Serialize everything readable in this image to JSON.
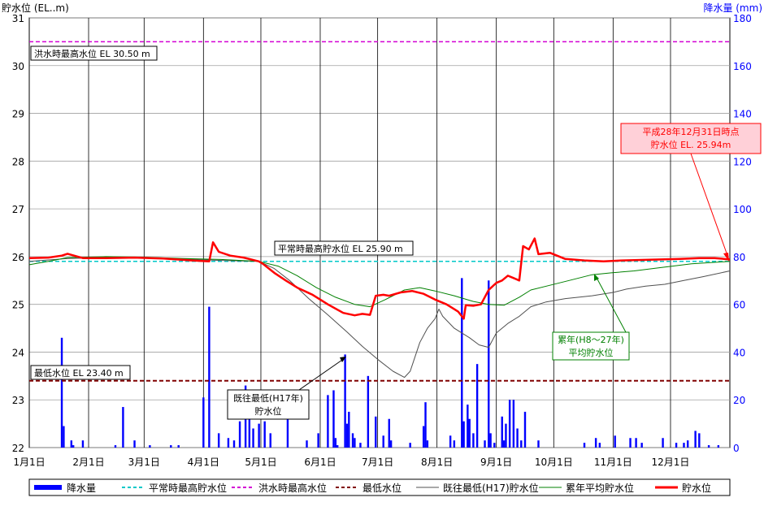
{
  "chart_data": {
    "type": "line",
    "left_axis_label": "貯水位 (EL..m)",
    "right_axis_label": "降水量 (mm)",
    "left_ticks": [
      22,
      23,
      24,
      25,
      26,
      27,
      28,
      29,
      30,
      31
    ],
    "right_ticks": [
      0,
      20,
      40,
      60,
      80,
      100,
      120,
      140,
      160,
      180
    ],
    "left_ylim": [
      22,
      31
    ],
    "right_ylim": [
      0,
      180
    ],
    "x_range": [
      0,
      366
    ],
    "months": [
      {
        "day": 0,
        "label": "1月1日"
      },
      {
        "day": 31,
        "label": "2月1日"
      },
      {
        "day": 60,
        "label": "3月1日"
      },
      {
        "day": 91,
        "label": "4月1日"
      },
      {
        "day": 121,
        "label": "5月1日"
      },
      {
        "day": 152,
        "label": "6月1日"
      },
      {
        "day": 182,
        "label": "7月1日"
      },
      {
        "day": 213,
        "label": "8月1日"
      },
      {
        "day": 244,
        "label": "9月1日"
      },
      {
        "day": 274,
        "label": "10月1日"
      },
      {
        "day": 305,
        "label": "11月1日"
      },
      {
        "day": 335,
        "label": "12月1日"
      }
    ],
    "reference_lines": [
      {
        "key": "normal_max",
        "value": 25.9,
        "color": "#00c8c8",
        "dash": "dashed",
        "label": "平常時最高貯水位 EL 25.90 m"
      },
      {
        "key": "flood_max",
        "value": 30.5,
        "color": "#d400d4",
        "dash": "dashed",
        "label": "洪水時最高水位 EL 30.50 m"
      },
      {
        "key": "min",
        "value": 23.4,
        "color": "#800000",
        "dash": "dashed",
        "label": "最低水位 EL 23.40 m"
      }
    ],
    "rainfall": [
      [
        17,
        46
      ],
      [
        18,
        9
      ],
      [
        22,
        3
      ],
      [
        23,
        1
      ],
      [
        28,
        3
      ],
      [
        45,
        1
      ],
      [
        49,
        17
      ],
      [
        55,
        3
      ],
      [
        63,
        1
      ],
      [
        74,
        1
      ],
      [
        78,
        1
      ],
      [
        91,
        21
      ],
      [
        94,
        59
      ],
      [
        99,
        6
      ],
      [
        104,
        4
      ],
      [
        107,
        3
      ],
      [
        110,
        11
      ],
      [
        113,
        26
      ],
      [
        115,
        21
      ],
      [
        117,
        8
      ],
      [
        120,
        10
      ],
      [
        123,
        11
      ],
      [
        126,
        6
      ],
      [
        135,
        12
      ],
      [
        145,
        3
      ],
      [
        151,
        6
      ],
      [
        156,
        22
      ],
      [
        159,
        24
      ],
      [
        160,
        4
      ],
      [
        161,
        1
      ],
      [
        165,
        39
      ],
      [
        166,
        10
      ],
      [
        167,
        15
      ],
      [
        169,
        6
      ],
      [
        170,
        4
      ],
      [
        173,
        2
      ],
      [
        177,
        30
      ],
      [
        181,
        13
      ],
      [
        185,
        5
      ],
      [
        188,
        12
      ],
      [
        189,
        3
      ],
      [
        199,
        2
      ],
      [
        206,
        9
      ],
      [
        207,
        19
      ],
      [
        208,
        3
      ],
      [
        220,
        5
      ],
      [
        222,
        3
      ],
      [
        226,
        71
      ],
      [
        227,
        11
      ],
      [
        229,
        18
      ],
      [
        230,
        12
      ],
      [
        232,
        6
      ],
      [
        234,
        35
      ],
      [
        238,
        3
      ],
      [
        240,
        70
      ],
      [
        241,
        6
      ],
      [
        243,
        2
      ],
      [
        247,
        13
      ],
      [
        248,
        3
      ],
      [
        249,
        10
      ],
      [
        251,
        20
      ],
      [
        253,
        20
      ],
      [
        255,
        8
      ],
      [
        257,
        3
      ],
      [
        259,
        15
      ],
      [
        266,
        3
      ],
      [
        290,
        2
      ],
      [
        296,
        4
      ],
      [
        298,
        2
      ],
      [
        306,
        5
      ],
      [
        314,
        4
      ],
      [
        317,
        4
      ],
      [
        320,
        2
      ],
      [
        331,
        4
      ],
      [
        338,
        2
      ],
      [
        342,
        2
      ],
      [
        344,
        3
      ],
      [
        348,
        7
      ],
      [
        350,
        6
      ],
      [
        355,
        1
      ],
      [
        360,
        1
      ]
    ],
    "series": [
      {
        "key": "historical_min",
        "name": "既往最低(H17)貯水位",
        "color": "#505050",
        "width": 1,
        "points": [
          [
            0,
            25.9
          ],
          [
            20,
            25.96
          ],
          [
            40,
            25.98
          ],
          [
            60,
            25.98
          ],
          [
            80,
            25.95
          ],
          [
            100,
            25.92
          ],
          [
            120,
            25.9
          ],
          [
            128,
            25.75
          ],
          [
            136,
            25.5
          ],
          [
            146,
            25.12
          ],
          [
            156,
            24.78
          ],
          [
            166,
            24.42
          ],
          [
            174,
            24.12
          ],
          [
            182,
            23.85
          ],
          [
            190,
            23.6
          ],
          [
            196,
            23.47
          ],
          [
            199,
            23.6
          ],
          [
            204,
            24.2
          ],
          [
            208,
            24.5
          ],
          [
            212,
            24.7
          ],
          [
            214,
            24.9
          ],
          [
            216,
            24.75
          ],
          [
            222,
            24.5
          ],
          [
            230,
            24.3
          ],
          [
            235,
            24.15
          ],
          [
            240,
            24.1
          ],
          [
            244,
            24.4
          ],
          [
            250,
            24.6
          ],
          [
            256,
            24.75
          ],
          [
            262,
            24.95
          ],
          [
            270,
            25.05
          ],
          [
            280,
            25.12
          ],
          [
            294,
            25.18
          ],
          [
            305,
            25.25
          ],
          [
            312,
            25.32
          ],
          [
            322,
            25.38
          ],
          [
            332,
            25.42
          ],
          [
            342,
            25.5
          ],
          [
            352,
            25.58
          ],
          [
            366,
            25.7
          ]
        ]
      },
      {
        "key": "average",
        "name": "累年平均貯水位",
        "color": "#008000",
        "width": 1,
        "points": [
          [
            0,
            25.83
          ],
          [
            10,
            25.9
          ],
          [
            20,
            25.98
          ],
          [
            40,
            26
          ],
          [
            60,
            25.99
          ],
          [
            80,
            25.96
          ],
          [
            100,
            25.94
          ],
          [
            120,
            25.9
          ],
          [
            130,
            25.8
          ],
          [
            140,
            25.6
          ],
          [
            150,
            25.35
          ],
          [
            160,
            25.15
          ],
          [
            170,
            25.0
          ],
          [
            178,
            24.95
          ],
          [
            186,
            25.1
          ],
          [
            196,
            25.3
          ],
          [
            204,
            25.35
          ],
          [
            212,
            25.28
          ],
          [
            222,
            25.18
          ],
          [
            232,
            25.06
          ],
          [
            240,
            25.0
          ],
          [
            248,
            24.98
          ],
          [
            256,
            25.15
          ],
          [
            262,
            25.3
          ],
          [
            272,
            25.4
          ],
          [
            282,
            25.5
          ],
          [
            294,
            25.62
          ],
          [
            304,
            25.66
          ],
          [
            316,
            25.7
          ],
          [
            330,
            25.77
          ],
          [
            346,
            25.85
          ],
          [
            366,
            25.9
          ]
        ]
      },
      {
        "key": "water_level",
        "name": "貯水位",
        "color": "#ff0000",
        "width": 2.5,
        "points": [
          [
            0,
            25.97
          ],
          [
            10,
            25.98
          ],
          [
            17,
            26.02
          ],
          [
            20,
            26.06
          ],
          [
            28,
            25.97
          ],
          [
            40,
            25.97
          ],
          [
            55,
            25.98
          ],
          [
            70,
            25.96
          ],
          [
            85,
            25.92
          ],
          [
            94,
            25.9
          ],
          [
            96,
            26.3
          ],
          [
            99,
            26.1
          ],
          [
            105,
            26.02
          ],
          [
            112,
            25.98
          ],
          [
            120,
            25.9
          ],
          [
            122,
            25.85
          ],
          [
            128,
            25.66
          ],
          [
            134,
            25.5
          ],
          [
            140,
            25.35
          ],
          [
            148,
            25.2
          ],
          [
            156,
            25.0
          ],
          [
            164,
            24.82
          ],
          [
            170,
            24.77
          ],
          [
            174,
            24.8
          ],
          [
            178,
            24.78
          ],
          [
            181,
            25.18
          ],
          [
            185,
            25.2
          ],
          [
            188,
            25.18
          ],
          [
            194,
            25.25
          ],
          [
            200,
            25.28
          ],
          [
            206,
            25.22
          ],
          [
            212,
            25.1
          ],
          [
            218,
            25.0
          ],
          [
            224,
            24.85
          ],
          [
            227,
            24.7
          ],
          [
            228,
            24.98
          ],
          [
            232,
            24.97
          ],
          [
            236,
            25.0
          ],
          [
            240,
            25.3
          ],
          [
            244,
            25.45
          ],
          [
            247,
            25.5
          ],
          [
            250,
            25.6
          ],
          [
            253,
            25.55
          ],
          [
            256,
            25.5
          ],
          [
            258,
            26.22
          ],
          [
            261,
            26.15
          ],
          [
            264,
            26.38
          ],
          [
            266,
            26.05
          ],
          [
            272,
            26.08
          ],
          [
            280,
            25.95
          ],
          [
            290,
            25.92
          ],
          [
            300,
            25.9
          ],
          [
            310,
            25.92
          ],
          [
            320,
            25.93
          ],
          [
            330,
            25.94
          ],
          [
            340,
            25.95
          ],
          [
            350,
            25.97
          ],
          [
            358,
            25.97
          ],
          [
            366,
            25.94
          ]
        ]
      }
    ],
    "annotations": {
      "flood": "洪水時最高水位 EL 30.50 m",
      "normal": "平常時最高貯水位 EL 25.90 m",
      "min": "最低水位 EL 23.40 m",
      "current_line1": "平成28年12月31日時点",
      "current_line2": "貯水位 EL. 25.94m",
      "hist_line1": "既往最低(H17年)",
      "hist_line2": "貯水位",
      "avg_line1": "累年(H8〜27年)",
      "avg_line2": "平均貯水位"
    },
    "legend": {
      "placement": "bottom",
      "items": [
        {
          "label": "降水量",
          "color": "#0000ff",
          "style": "bar"
        },
        {
          "label": "平常時最高貯水位",
          "color": "#00c8c8",
          "style": "dashed"
        },
        {
          "label": "洪水時最高水位",
          "color": "#d400d4",
          "style": "dashed"
        },
        {
          "label": "最低水位",
          "color": "#800000",
          "style": "dashed"
        },
        {
          "label": "既往最低(H17)貯水位",
          "color": "#505050",
          "style": "line"
        },
        {
          "label": "累年平均貯水位",
          "color": "#008000",
          "style": "line"
        },
        {
          "label": "貯水位",
          "color": "#ff0000",
          "style": "thick"
        }
      ]
    },
    "colors": {
      "rain": "#0000ff",
      "grid": "#000000",
      "left_axis_text": "#000000",
      "right_axis_text": "#0000ff",
      "current_box_fill": "#ffd0d8",
      "current_box_border": "#ff0000"
    }
  }
}
